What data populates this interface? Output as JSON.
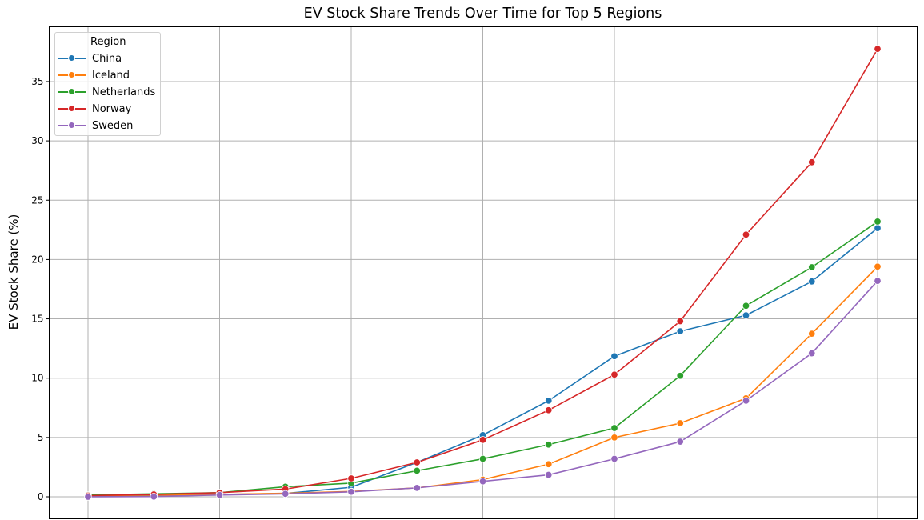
{
  "title": "EV Stock Share Trends Over Time for Top 5 Regions",
  "ylabel": "EV Stock Share (%)",
  "legend": {
    "title": "Region",
    "items": [
      {
        "label": "China",
        "color": "#1f77b4"
      },
      {
        "label": "Iceland",
        "color": "#ff7f0e"
      },
      {
        "label": "Netherlands",
        "color": "#2ca02c"
      },
      {
        "label": "Norway",
        "color": "#d62728"
      },
      {
        "label": "Sweden",
        "color": "#9467bd"
      }
    ]
  },
  "chart_data": {
    "type": "line",
    "title": "EV Stock Share Trends Over Time for Top 5 Regions",
    "xlabel": "",
    "ylabel": "EV Stock Share (%)",
    "x": [
      0,
      1,
      2,
      3,
      4,
      5,
      6,
      7,
      8,
      9,
      10,
      11,
      12
    ],
    "x_tick_labels_visible": false,
    "yticks": [
      0,
      5,
      10,
      15,
      20,
      25,
      30,
      35
    ],
    "ylim": [
      -1.9,
      39.6
    ],
    "grid": true,
    "legend_position": "upper left",
    "legend_title": "Region",
    "series": [
      {
        "name": "China",
        "color": "#1f77b4",
        "values": [
          0.02,
          0.05,
          0.2,
          0.28,
          0.8,
          2.9,
          5.2,
          8.1,
          11.85,
          13.95,
          15.3,
          18.15,
          22.65
        ]
      },
      {
        "name": "Iceland",
        "color": "#ff7f0e",
        "values": [
          0.1,
          0.15,
          0.2,
          0.3,
          0.45,
          0.75,
          1.45,
          2.75,
          5.0,
          6.2,
          8.3,
          13.75,
          19.4
        ]
      },
      {
        "name": "Netherlands",
        "color": "#2ca02c",
        "values": [
          0.15,
          0.25,
          0.35,
          0.85,
          1.15,
          2.2,
          3.2,
          4.4,
          5.8,
          10.2,
          16.1,
          19.35,
          23.2
        ]
      },
      {
        "name": "Norway",
        "color": "#d62728",
        "values": [
          0.1,
          0.2,
          0.35,
          0.65,
          1.55,
          2.9,
          4.8,
          7.3,
          10.3,
          14.8,
          22.1,
          28.2,
          37.75
        ]
      },
      {
        "name": "Sweden",
        "color": "#9467bd",
        "values": [
          0.0,
          0.02,
          0.15,
          0.25,
          0.42,
          0.75,
          1.3,
          1.85,
          3.2,
          4.65,
          8.1,
          12.1,
          18.2
        ]
      }
    ]
  }
}
